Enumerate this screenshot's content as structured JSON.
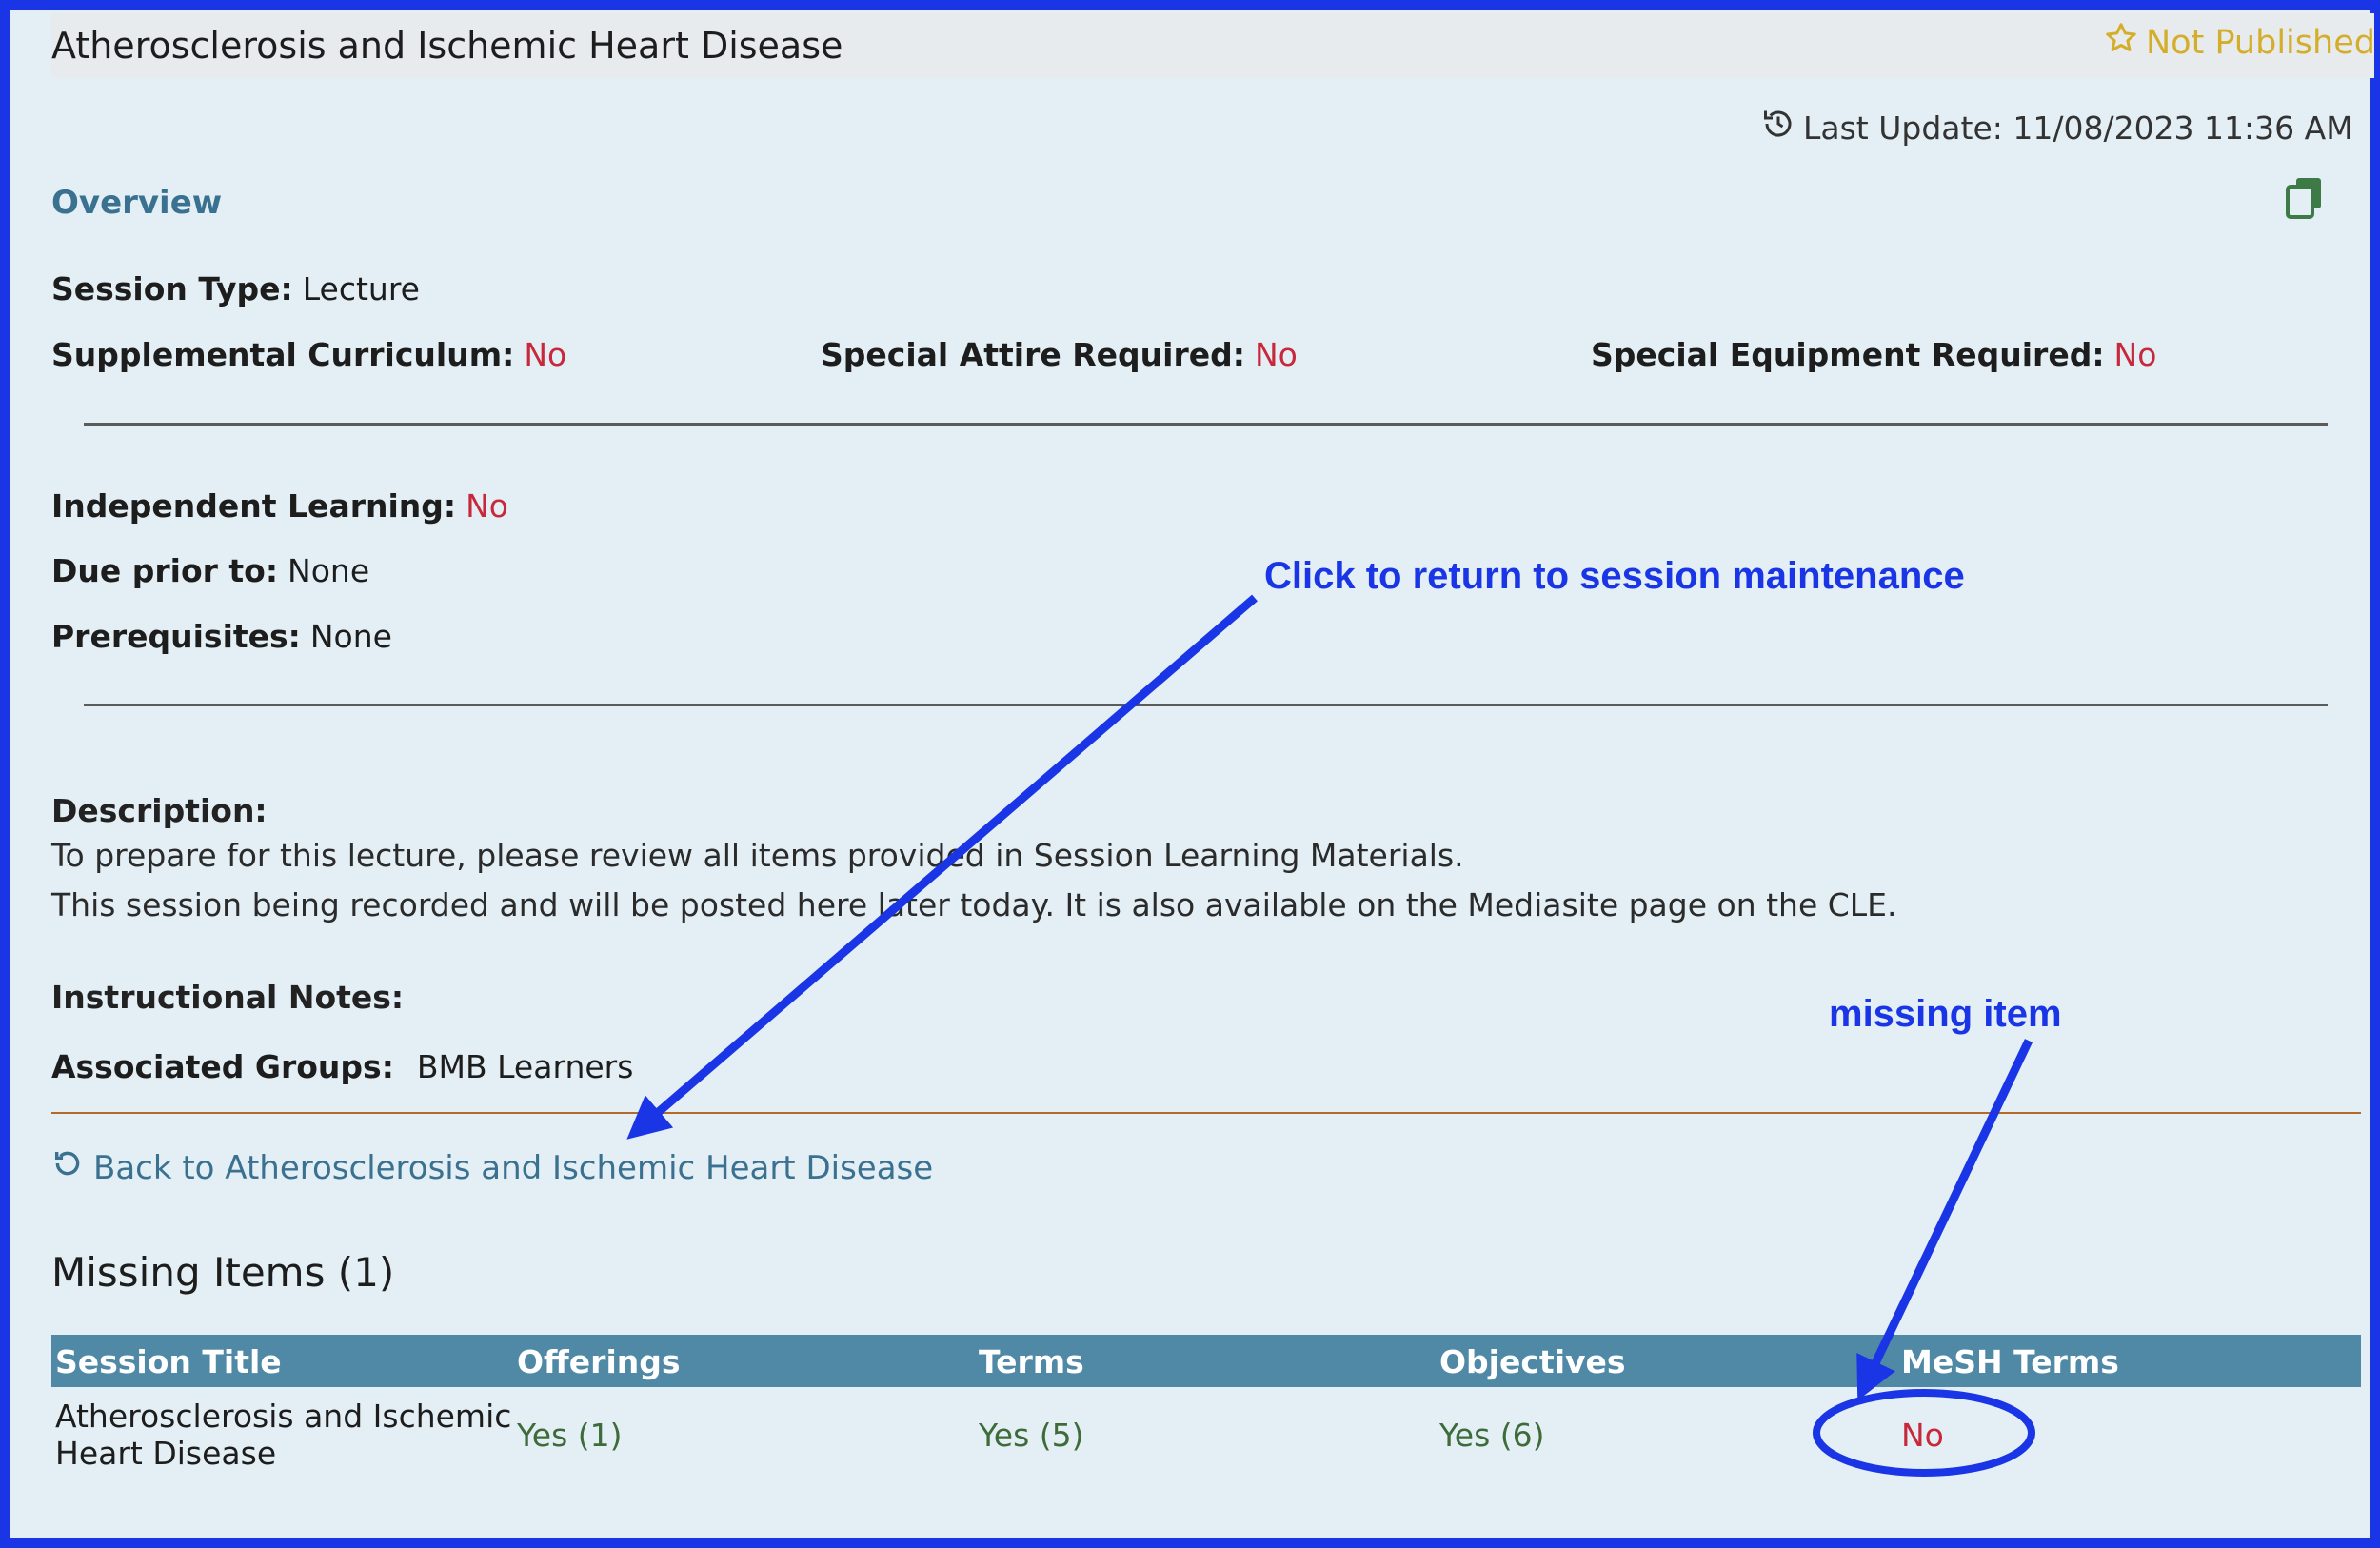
{
  "header": {
    "title": "Atherosclerosis and Ischemic Heart Disease",
    "publish_status": "Not Published",
    "last_update": "Last Update: 11/08/2023 11:36 AM"
  },
  "overview": {
    "link_label": "Overview",
    "session_type": {
      "label": "Session Type:",
      "value": "Lecture"
    },
    "supplemental_curriculum": {
      "label": "Supplemental Curriculum:",
      "value": "No"
    },
    "special_attire": {
      "label": "Special Attire Required:",
      "value": "No"
    },
    "special_equipment": {
      "label": "Special Equipment Required:",
      "value": "No"
    },
    "independent_learning": {
      "label": "Independent Learning:",
      "value": "No"
    },
    "due_prior_to": {
      "label": "Due prior to:",
      "value": "None"
    },
    "prerequisites": {
      "label": "Prerequisites:",
      "value": "None"
    },
    "description_label": "Description:",
    "description_lines": [
      "To prepare for this lecture, please review all items provided in Session Learning Materials.",
      "This session being recorded and will be posted here later today. It is also available on the Mediasite page on the CLE."
    ],
    "instructional_notes_label": "Instructional Notes:",
    "associated_groups": {
      "label": "Associated Groups:",
      "value": "BMB Learners"
    }
  },
  "back_link": "Back to Atherosclerosis and Ischemic Heart Disease",
  "missing_items": {
    "heading": "Missing Items (1)",
    "columns": [
      "Session Title",
      "Offerings",
      "Terms",
      "Objectives",
      "MeSH Terms"
    ],
    "rows": [
      {
        "title_line_1": "Atherosclerosis and Ischemic",
        "title_line_2": "Heart Disease",
        "offerings": "Yes (1)",
        "terms": "Yes (5)",
        "objectives": "Yes (6)",
        "mesh_terms": "No"
      }
    ]
  },
  "annotations": {
    "return_note": "Click to return to session maintenance",
    "missing_note": "missing item",
    "color": "#1a35e6"
  },
  "colors": {
    "link": "#3b7190",
    "no_value": "#c8283c",
    "yes_value": "#3d6b3a",
    "table_header": "#4f89a6",
    "status_gold": "#d4ae2a"
  }
}
